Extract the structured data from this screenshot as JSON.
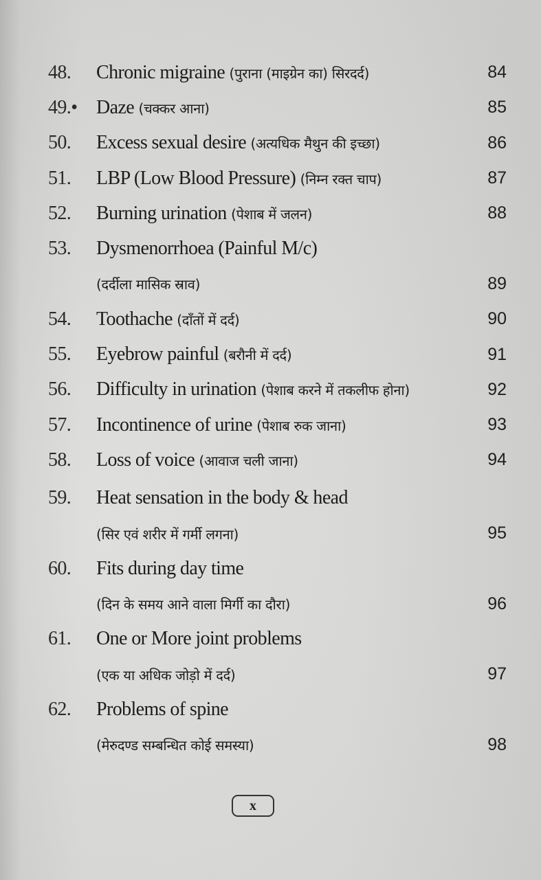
{
  "entries": [
    {
      "num": "48.",
      "lines": [
        {
          "en": "Chronic migraine ",
          "hi": "(पुराना (माइग्रेन का) सिरदर्द)"
        }
      ],
      "page": "84"
    },
    {
      "num": "49.•",
      "lines": [
        {
          "en": "Daze ",
          "hi": "(चक्कर आना)"
        }
      ],
      "page": "85"
    },
    {
      "num": "50.",
      "lines": [
        {
          "en": "Excess sexual desire ",
          "hi": "(अत्यधिक मैथुन की इच्छा)"
        }
      ],
      "page": "86"
    },
    {
      "num": "51.",
      "lines": [
        {
          "en": "LBP (Low Blood Pressure) ",
          "hi": "(निम्न रक्त चाप)"
        }
      ],
      "page": "87"
    },
    {
      "num": "52.",
      "lines": [
        {
          "en": "Burning urination ",
          "hi": "(पेशाब में जलन)"
        }
      ],
      "page": "88"
    },
    {
      "num": "53.",
      "lines": [
        {
          "en": "Dysmenorrhoea (Painful M/c)",
          "hi": ""
        },
        {
          "en": "",
          "hi": "(दर्दीला मासिक स्राव)"
        }
      ],
      "page": "89"
    },
    {
      "num": "54.",
      "lines": [
        {
          "en": "Toothache ",
          "hi": "(दाँतों में दर्द)"
        }
      ],
      "page": "90"
    },
    {
      "num": "55.",
      "lines": [
        {
          "en": "Eyebrow painful ",
          "hi": "(बरौनी में दर्द)"
        }
      ],
      "page": "91"
    },
    {
      "num": "56.",
      "lines": [
        {
          "en": "Difficulty in urination ",
          "hi": "(पेशाब करने में तकलीफ होना)"
        }
      ],
      "page": "92"
    },
    {
      "num": "57.",
      "lines": [
        {
          "en": "Incontinence of urine ",
          "hi": "(पेशाब रुक जाना)"
        }
      ],
      "page": "93"
    },
    {
      "num": "58.",
      "lines": [
        {
          "en": "Loss of voice ",
          "hi": "(आवाज चली जाना)"
        }
      ],
      "page": "94"
    },
    {
      "num": "59.",
      "lines": [
        {
          "en": "Heat sensation in the body & head",
          "hi": ""
        },
        {
          "en": "",
          "hi": "(सिर एवं शरीर में गर्मी लगना)"
        }
      ],
      "page": "95"
    },
    {
      "num": "60.",
      "lines": [
        {
          "en": "Fits during day time",
          "hi": ""
        },
        {
          "en": "",
          "hi": "(दिन के समय आने वाला मिर्गी का दौरा)"
        }
      ],
      "page": "96"
    },
    {
      "num": "61.",
      "lines": [
        {
          "en": "One or More joint problems",
          "hi": ""
        },
        {
          "en": "",
          "hi": "(एक या अधिक जोड़ो में दर्द)"
        }
      ],
      "page": "97"
    },
    {
      "num": "62.",
      "lines": [
        {
          "en": "Problems of spine",
          "hi": ""
        },
        {
          "en": "",
          "hi": "(मेरुदण्ड सम्बन्धित कोई समस्या)"
        }
      ],
      "page": "98"
    }
  ],
  "folio": "x"
}
